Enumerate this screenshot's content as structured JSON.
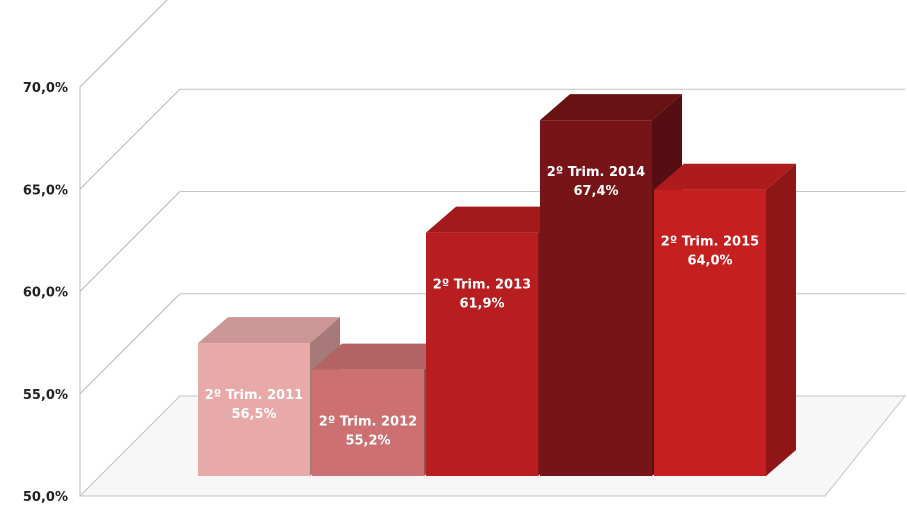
{
  "chart_data": {
    "type": "bar",
    "title": "",
    "xlabel": "",
    "ylabel": "",
    "ylim": [
      50,
      70
    ],
    "y_ticks": [
      "50,0%",
      "55,0%",
      "60,0%",
      "65,0%",
      "70,0%"
    ],
    "grid": true,
    "legend": "none",
    "categories": [
      "2º Trim. 2011",
      "2º Trim. 2012",
      "2º Trim. 2013",
      "2º Trim. 2014",
      "2º Trim. 2015"
    ],
    "values": [
      56.5,
      55.2,
      61.9,
      67.4,
      64.0
    ],
    "value_labels": [
      "56,5%",
      "55,2%",
      "61,9%",
      "67,4%",
      "64,0%"
    ],
    "colors": [
      "#e8aaa9",
      "#cc7072",
      "#b81d1f",
      "#761417",
      "#c61f20"
    ]
  }
}
